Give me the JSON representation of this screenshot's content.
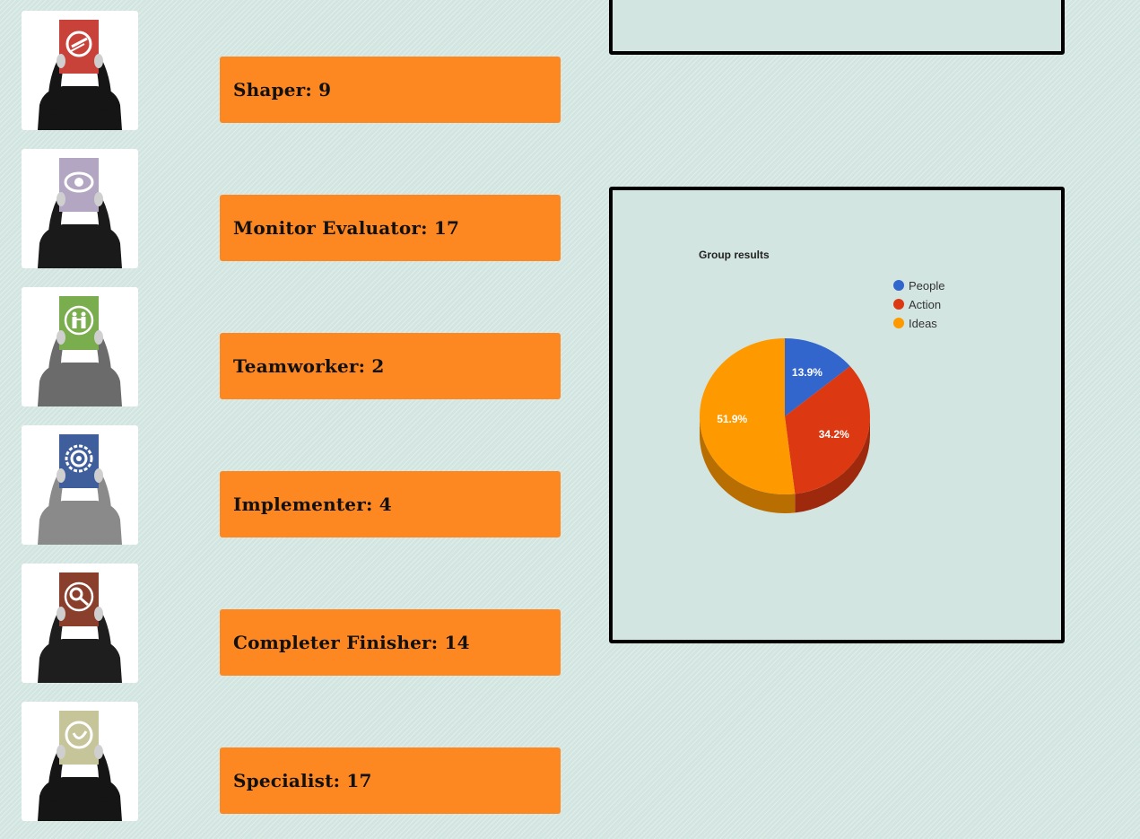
{
  "roles": [
    {
      "id": "shaper",
      "label": "Shaper: 9",
      "card_color": "#c8423a",
      "icon": "shaper-icon",
      "clothes": "#151515"
    },
    {
      "id": "monitor-evaluator",
      "label": "Monitor Evaluator: 17",
      "card_color": "#b3a6c2",
      "icon": "eye-icon",
      "clothes": "#1a1a1a"
    },
    {
      "id": "teamworker",
      "label": "Teamworker: 2",
      "card_color": "#79ad4e",
      "icon": "people-icon",
      "clothes": "#6b6b6b"
    },
    {
      "id": "implementer",
      "label": "Implementer: 4",
      "card_color": "#3e5e9c",
      "icon": "gear-icon",
      "clothes": "#8a8a8a"
    },
    {
      "id": "completer-finisher",
      "label": "Completer Finisher: 14",
      "card_color": "#8a3e2c",
      "icon": "magnifier-icon",
      "clothes": "#1e1e1e"
    },
    {
      "id": "specialist",
      "label": "Specialist: 17",
      "card_color": "#c6c59a",
      "icon": "specialist-icon",
      "clothes": "#151515"
    }
  ],
  "chart_data": {
    "type": "pie",
    "title": "Group results",
    "categories": [
      "People",
      "Action",
      "Ideas"
    ],
    "values": [
      13.9,
      34.2,
      51.9
    ],
    "labels": [
      "13.9%",
      "34.2%",
      "51.9%"
    ],
    "colors": [
      "#3366cc",
      "#dc3912",
      "#ff9900"
    ],
    "legend_position": "top-right",
    "style": "3d"
  }
}
